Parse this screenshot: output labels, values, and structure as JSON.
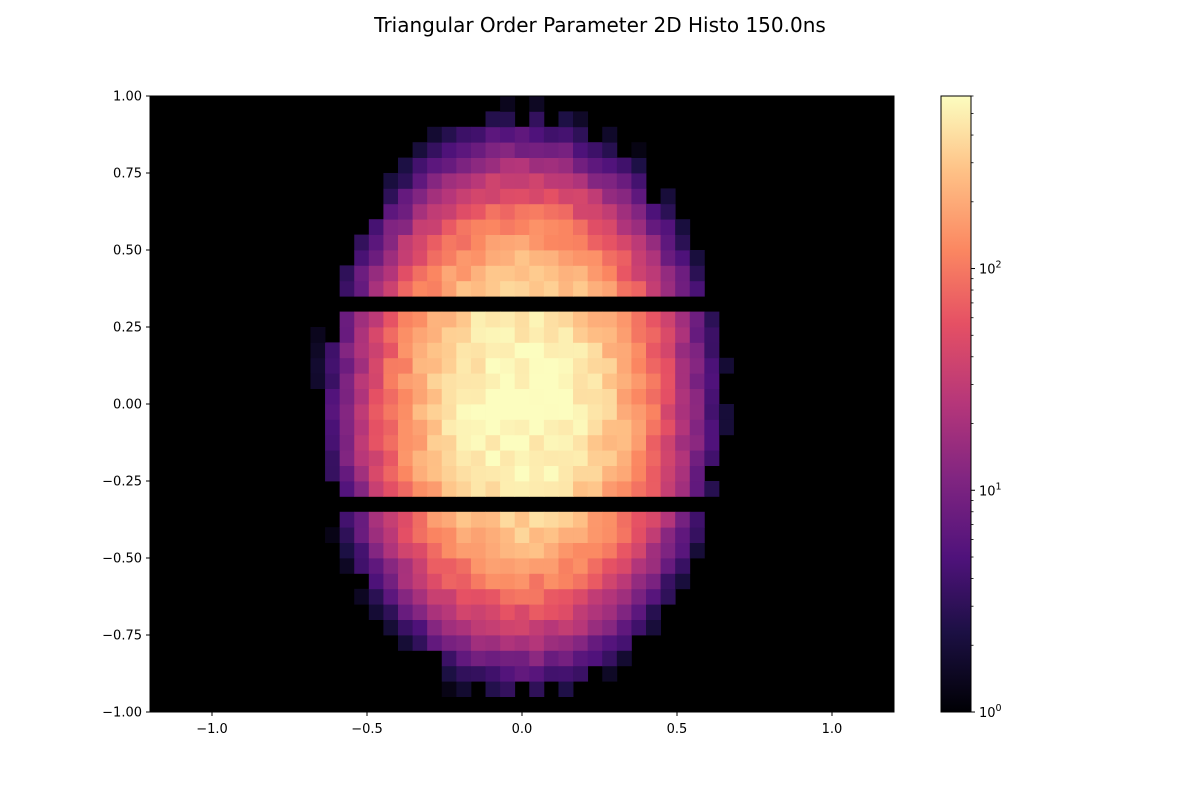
{
  "chart_data": {
    "type": "heatmap",
    "title": "Triangular Order Parameter 2D Histo 150.0ns",
    "xlabel": "",
    "ylabel": "",
    "xlim": [
      -1.2,
      1.2
    ],
    "ylim": [
      -1.0,
      1.0
    ],
    "xticks": [
      -1.0,
      -0.5,
      0.0,
      0.5,
      1.0
    ],
    "xtick_labels": [
      "−1.0",
      "−0.5",
      "0.0",
      "0.5",
      "1.0"
    ],
    "yticks": [
      -1.0,
      -0.75,
      -0.5,
      -0.25,
      0.0,
      0.25,
      0.5,
      0.75,
      1.0
    ],
    "ytick_labels": [
      "−1.00",
      "−0.75",
      "−0.50",
      "−0.25",
      "0.00",
      "0.25",
      "0.50",
      "0.75",
      "1.00"
    ],
    "colormap": "magma",
    "background_color": "#000000",
    "colorbar": {
      "scale": "log",
      "range": [
        1,
        600
      ],
      "tick_values": [
        1,
        10,
        100
      ],
      "tick_labels": [
        {
          "base": "10",
          "exp": "0"
        },
        {
          "base": "10",
          "exp": "1"
        },
        {
          "base": "10",
          "exp": "2"
        }
      ]
    },
    "bins": {
      "x_edges": [
        -1.2,
        1.2
      ],
      "y_edges": [
        -1.0,
        1.0
      ],
      "nx": 51,
      "ny": 40
    },
    "data_extent": {
      "x_range": [
        -0.7,
        0.75
      ],
      "y_range": [
        -0.95,
        0.95
      ],
      "empty_y_bands": [
        [
          0.3,
          0.35
        ],
        [
          -0.35,
          -0.3
        ]
      ],
      "peak_value": 600
    }
  }
}
